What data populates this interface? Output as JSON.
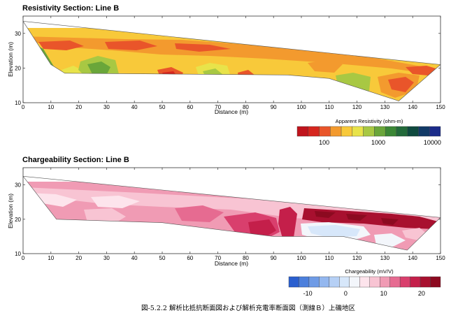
{
  "chart_data": [
    {
      "type": "heatmap",
      "title": "Resistivity Section: Line B",
      "xlabel": "Distance (m)",
      "ylabel": "Elevation (m)",
      "xlim": [
        0,
        150
      ],
      "ylim": [
        10,
        35
      ],
      "x_ticks": [
        "0",
        "10",
        "20",
        "30",
        "40",
        "50",
        "60",
        "70",
        "80",
        "90",
        "100",
        "110",
        "120",
        "130",
        "140",
        "150"
      ],
      "y_ticks": [
        "30",
        "20",
        "10"
      ],
      "colorbar": {
        "title": "Apparent Resistivity (ohm-m)",
        "scale": "log",
        "tick_labels": [
          "100",
          "1000",
          "10000"
        ],
        "colors": [
          "#c0141c",
          "#d6261e",
          "#e9552a",
          "#f39a2e",
          "#f8c93a",
          "#e8e34a",
          "#a8c843",
          "#6aa63a",
          "#3b8735",
          "#226a3a",
          "#0f4a3f",
          "#123a67",
          "#1b2c8a"
        ]
      },
      "top_surface": [
        [
          0,
          33.5
        ],
        [
          150,
          21
        ]
      ],
      "bottom_surface": [
        [
          0,
          33.5
        ],
        [
          10,
          21
        ],
        [
          15,
          18.5
        ],
        [
          95,
          18
        ],
        [
          110,
          17
        ],
        [
          135,
          10.5
        ],
        [
          150,
          21
        ]
      ]
    },
    {
      "type": "heatmap",
      "title": "Chargeability Section: Line B",
      "xlabel": "Distance (m)",
      "ylabel": "Elevation (m)",
      "xlim": [
        0,
        150
      ],
      "ylim": [
        10,
        35
      ],
      "x_ticks": [
        "0",
        "10",
        "20",
        "30",
        "40",
        "50",
        "60",
        "70",
        "80",
        "90",
        "100",
        "110",
        "120",
        "130",
        "140",
        "150"
      ],
      "y_ticks": [
        "30",
        "20",
        "10"
      ],
      "colorbar": {
        "title": "Chargeability (mV/V)",
        "tick_labels": [
          "-10",
          "0",
          "10",
          "20"
        ],
        "tick_values": [
          -10,
          0,
          10,
          20
        ],
        "range": [
          -15,
          25
        ],
        "colors": [
          "#2a5fcf",
          "#4c7fdc",
          "#6f9be6",
          "#93b7ef",
          "#b6d0f5",
          "#d7e7fa",
          "#f3f6fb",
          "#fde4ec",
          "#f8c4d3",
          "#f09bb4",
          "#e66b91",
          "#d93f6d",
          "#c41f4a",
          "#a8102f",
          "#8c0a20"
        ]
      },
      "top_surface": [
        [
          0,
          32.5
        ],
        [
          150,
          20.5
        ]
      ],
      "bottom_surface": [
        [
          0,
          32.5
        ],
        [
          12,
          20
        ],
        [
          50,
          19
        ],
        [
          90,
          15
        ],
        [
          115,
          15
        ],
        [
          138,
          11
        ],
        [
          150,
          20.5
        ]
      ]
    }
  ],
  "caption": "図-5.2.2 解析比抵抗断面図および解析充電率断面図（測線Ｂ）上磯地区"
}
